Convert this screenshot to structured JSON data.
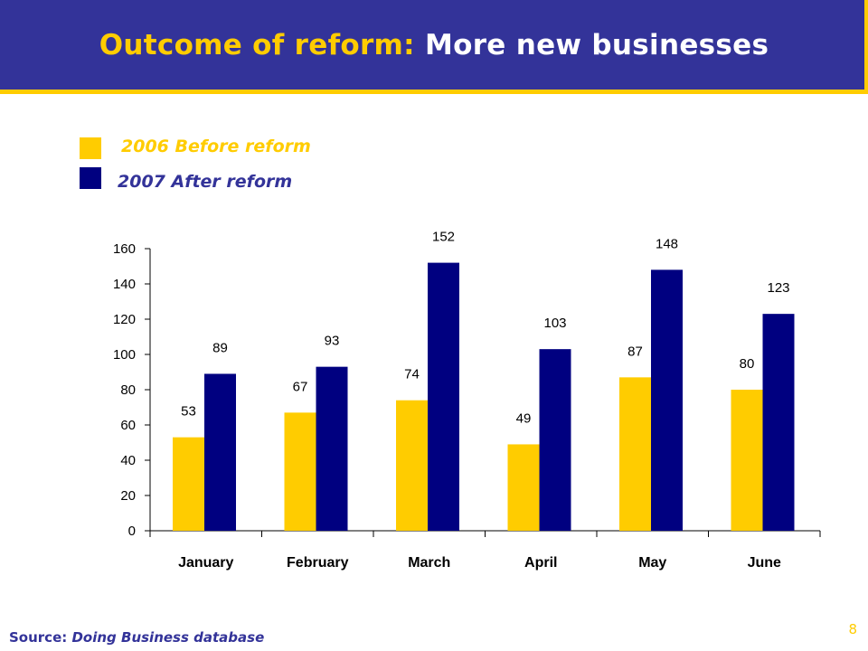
{
  "header": {
    "title_part1": "Outcome of reform:",
    "title_part2": "More new businesses"
  },
  "colors": {
    "before": "#ffcc00",
    "after": "#000080",
    "header_bg": "#333399",
    "accent": "#ffcc00"
  },
  "legend": {
    "before_label": "2006 Before reform",
    "after_label": "2007 After reform"
  },
  "chart_data": {
    "type": "bar",
    "categories": [
      "January",
      "February",
      "March",
      "April",
      "May",
      "June"
    ],
    "series": [
      {
        "name": "2006 Before reform",
        "values": [
          53,
          67,
          74,
          49,
          87,
          80
        ]
      },
      {
        "name": "2007 After reform",
        "values": [
          89,
          93,
          152,
          103,
          148,
          123
        ]
      }
    ],
    "ylim": [
      0,
      160
    ],
    "yticks": [
      0,
      20,
      40,
      60,
      80,
      100,
      120,
      140,
      160
    ],
    "title": "",
    "xlabel": "",
    "ylabel": "",
    "grid": false,
    "legend_placement": "top-left"
  },
  "footer": {
    "source_label": "Source:",
    "source_value": "Doing Business database",
    "page_number": "8"
  }
}
